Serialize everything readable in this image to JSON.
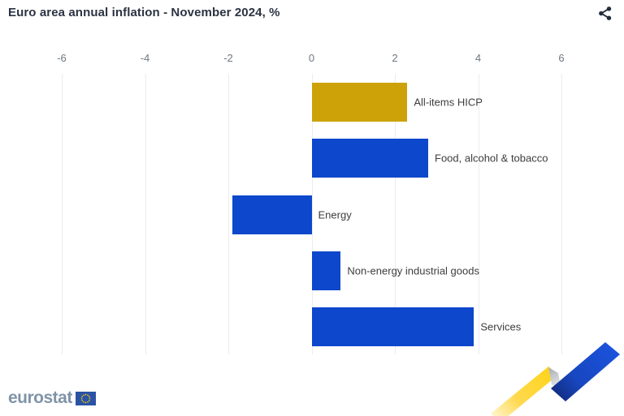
{
  "header": {
    "title": "Euro area annual inflation - November 2024, %",
    "share_icon": "share-icon"
  },
  "chart_data": {
    "type": "bar",
    "orientation": "horizontal",
    "title": "Euro area annual inflation - November 2024, %",
    "categories": [
      "All-items HICP",
      "Food, alcohol & tobacco",
      "Energy",
      "Non-energy industrial goods",
      "Services"
    ],
    "values": [
      2.3,
      2.8,
      -1.9,
      0.7,
      3.9
    ],
    "bar_colors": [
      "#CDA208",
      "#0D47CB",
      "#0D47CB",
      "#0D47CB",
      "#0D47CB"
    ],
    "x_ticks": [
      -6,
      -4,
      -2,
      0,
      2,
      4,
      6
    ],
    "xlim": [
      -6,
      6
    ],
    "grid": true,
    "axis_position": "top",
    "legend": "none"
  },
  "footer": {
    "brand": "eurostat",
    "flag_icon": "eu-flag-icon",
    "ribbon_icon": "eurostat-ribbon-logo"
  },
  "colors": {
    "accent_gold": "#CDA208",
    "accent_blue": "#0D47CB",
    "grid": "#E8ECF3",
    "tick_label": "#6E7781",
    "bar_label": "#3D3D3D",
    "title": "#2B3342",
    "share_icon": "#232D3B",
    "brand_text": "#8094A8",
    "flag_blue": "#2A52A5",
    "flag_stars": "#FFCC00",
    "ribbon_yellow": "#FFD41A",
    "ribbon_blue": "#1A52DA",
    "ribbon_gray": "#AEB2B8"
  }
}
